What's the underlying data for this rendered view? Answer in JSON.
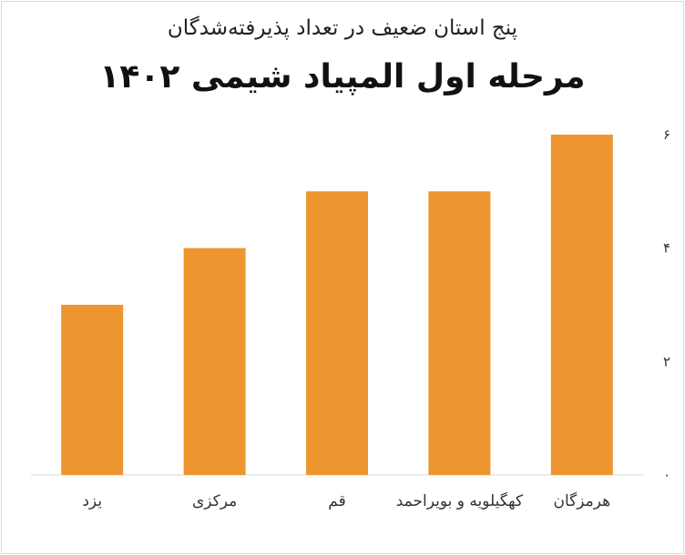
{
  "chart_data": {
    "type": "bar",
    "subtitle": "پنج استان ضعیف در تعداد پذیرفته‌شدگان",
    "title": "مرحله اول المپیاد شیمی ۱۴۰۲",
    "categories": [
      "هرمزگان",
      "کهگیلویه و بویراحمد",
      "قم",
      "مرکزی",
      "یزد"
    ],
    "values": [
      6,
      5,
      5,
      4,
      3
    ],
    "ytick_labels": [
      "۰",
      "۲",
      "۴",
      "۶"
    ],
    "ytick_values": [
      0,
      2,
      4,
      6
    ],
    "ylim": [
      0,
      6
    ],
    "y_axis_position": "right",
    "grid": false,
    "legend": "none",
    "bar_color": "#ED952F",
    "xlabel": "",
    "ylabel": ""
  }
}
